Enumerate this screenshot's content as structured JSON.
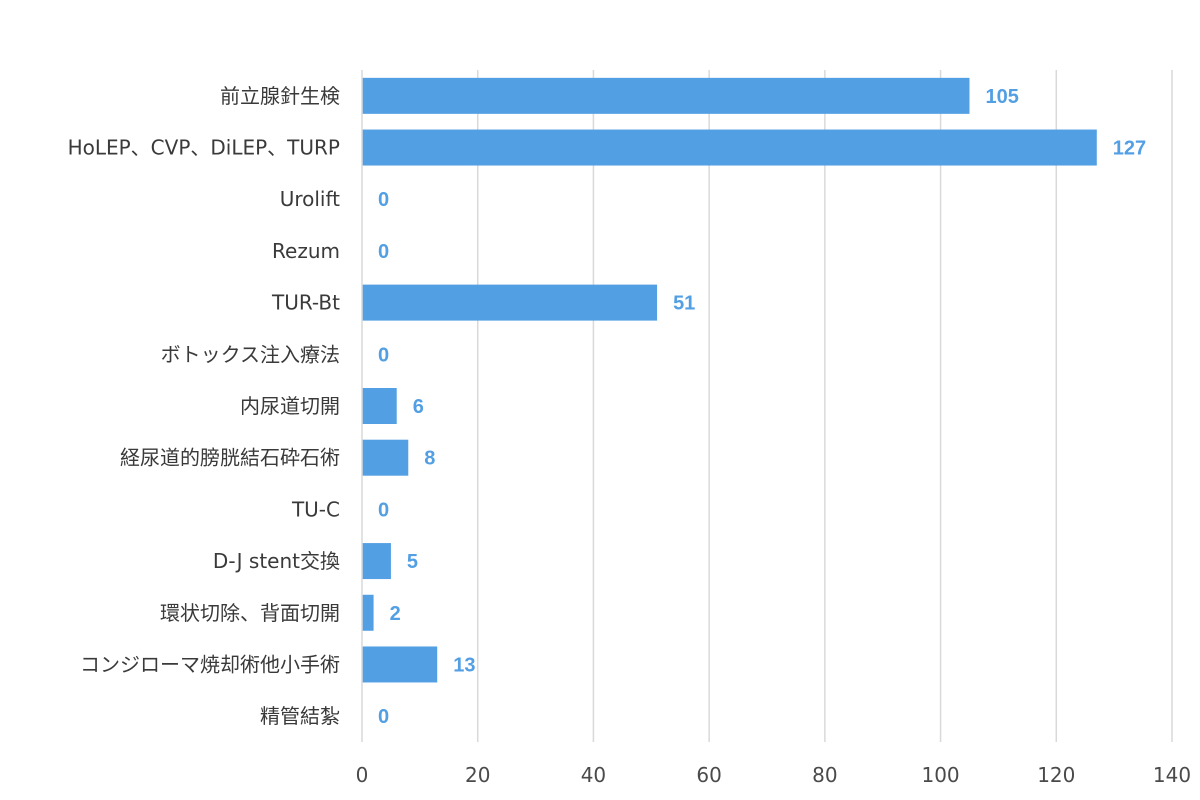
{
  "chart_data": {
    "type": "bar",
    "orientation": "horizontal",
    "title": "",
    "xlabel": "",
    "ylabel": "",
    "categories": [
      "前立腺針生検",
      "HoLEP、CVP、DiLEP、TURP",
      "Urolift",
      "Rezum",
      "TUR-Bt",
      "ボトックス注入療法",
      "内尿道切開",
      "経尿道的膀胱結石砕石術",
      "TU-C",
      "D-J stent交換",
      "環状切除、背面切開",
      "コンジローマ焼却術他小手術",
      "精管結紮"
    ],
    "values": [
      105,
      127,
      0,
      0,
      51,
      0,
      6,
      8,
      0,
      5,
      2,
      13,
      0
    ],
    "xlim": [
      0,
      140
    ],
    "ticks": [
      0,
      20,
      40,
      60,
      80,
      100,
      120,
      140
    ],
    "grid": true,
    "legend": "none",
    "bar_color": "#539fe4",
    "label_color": "#539fe4"
  }
}
